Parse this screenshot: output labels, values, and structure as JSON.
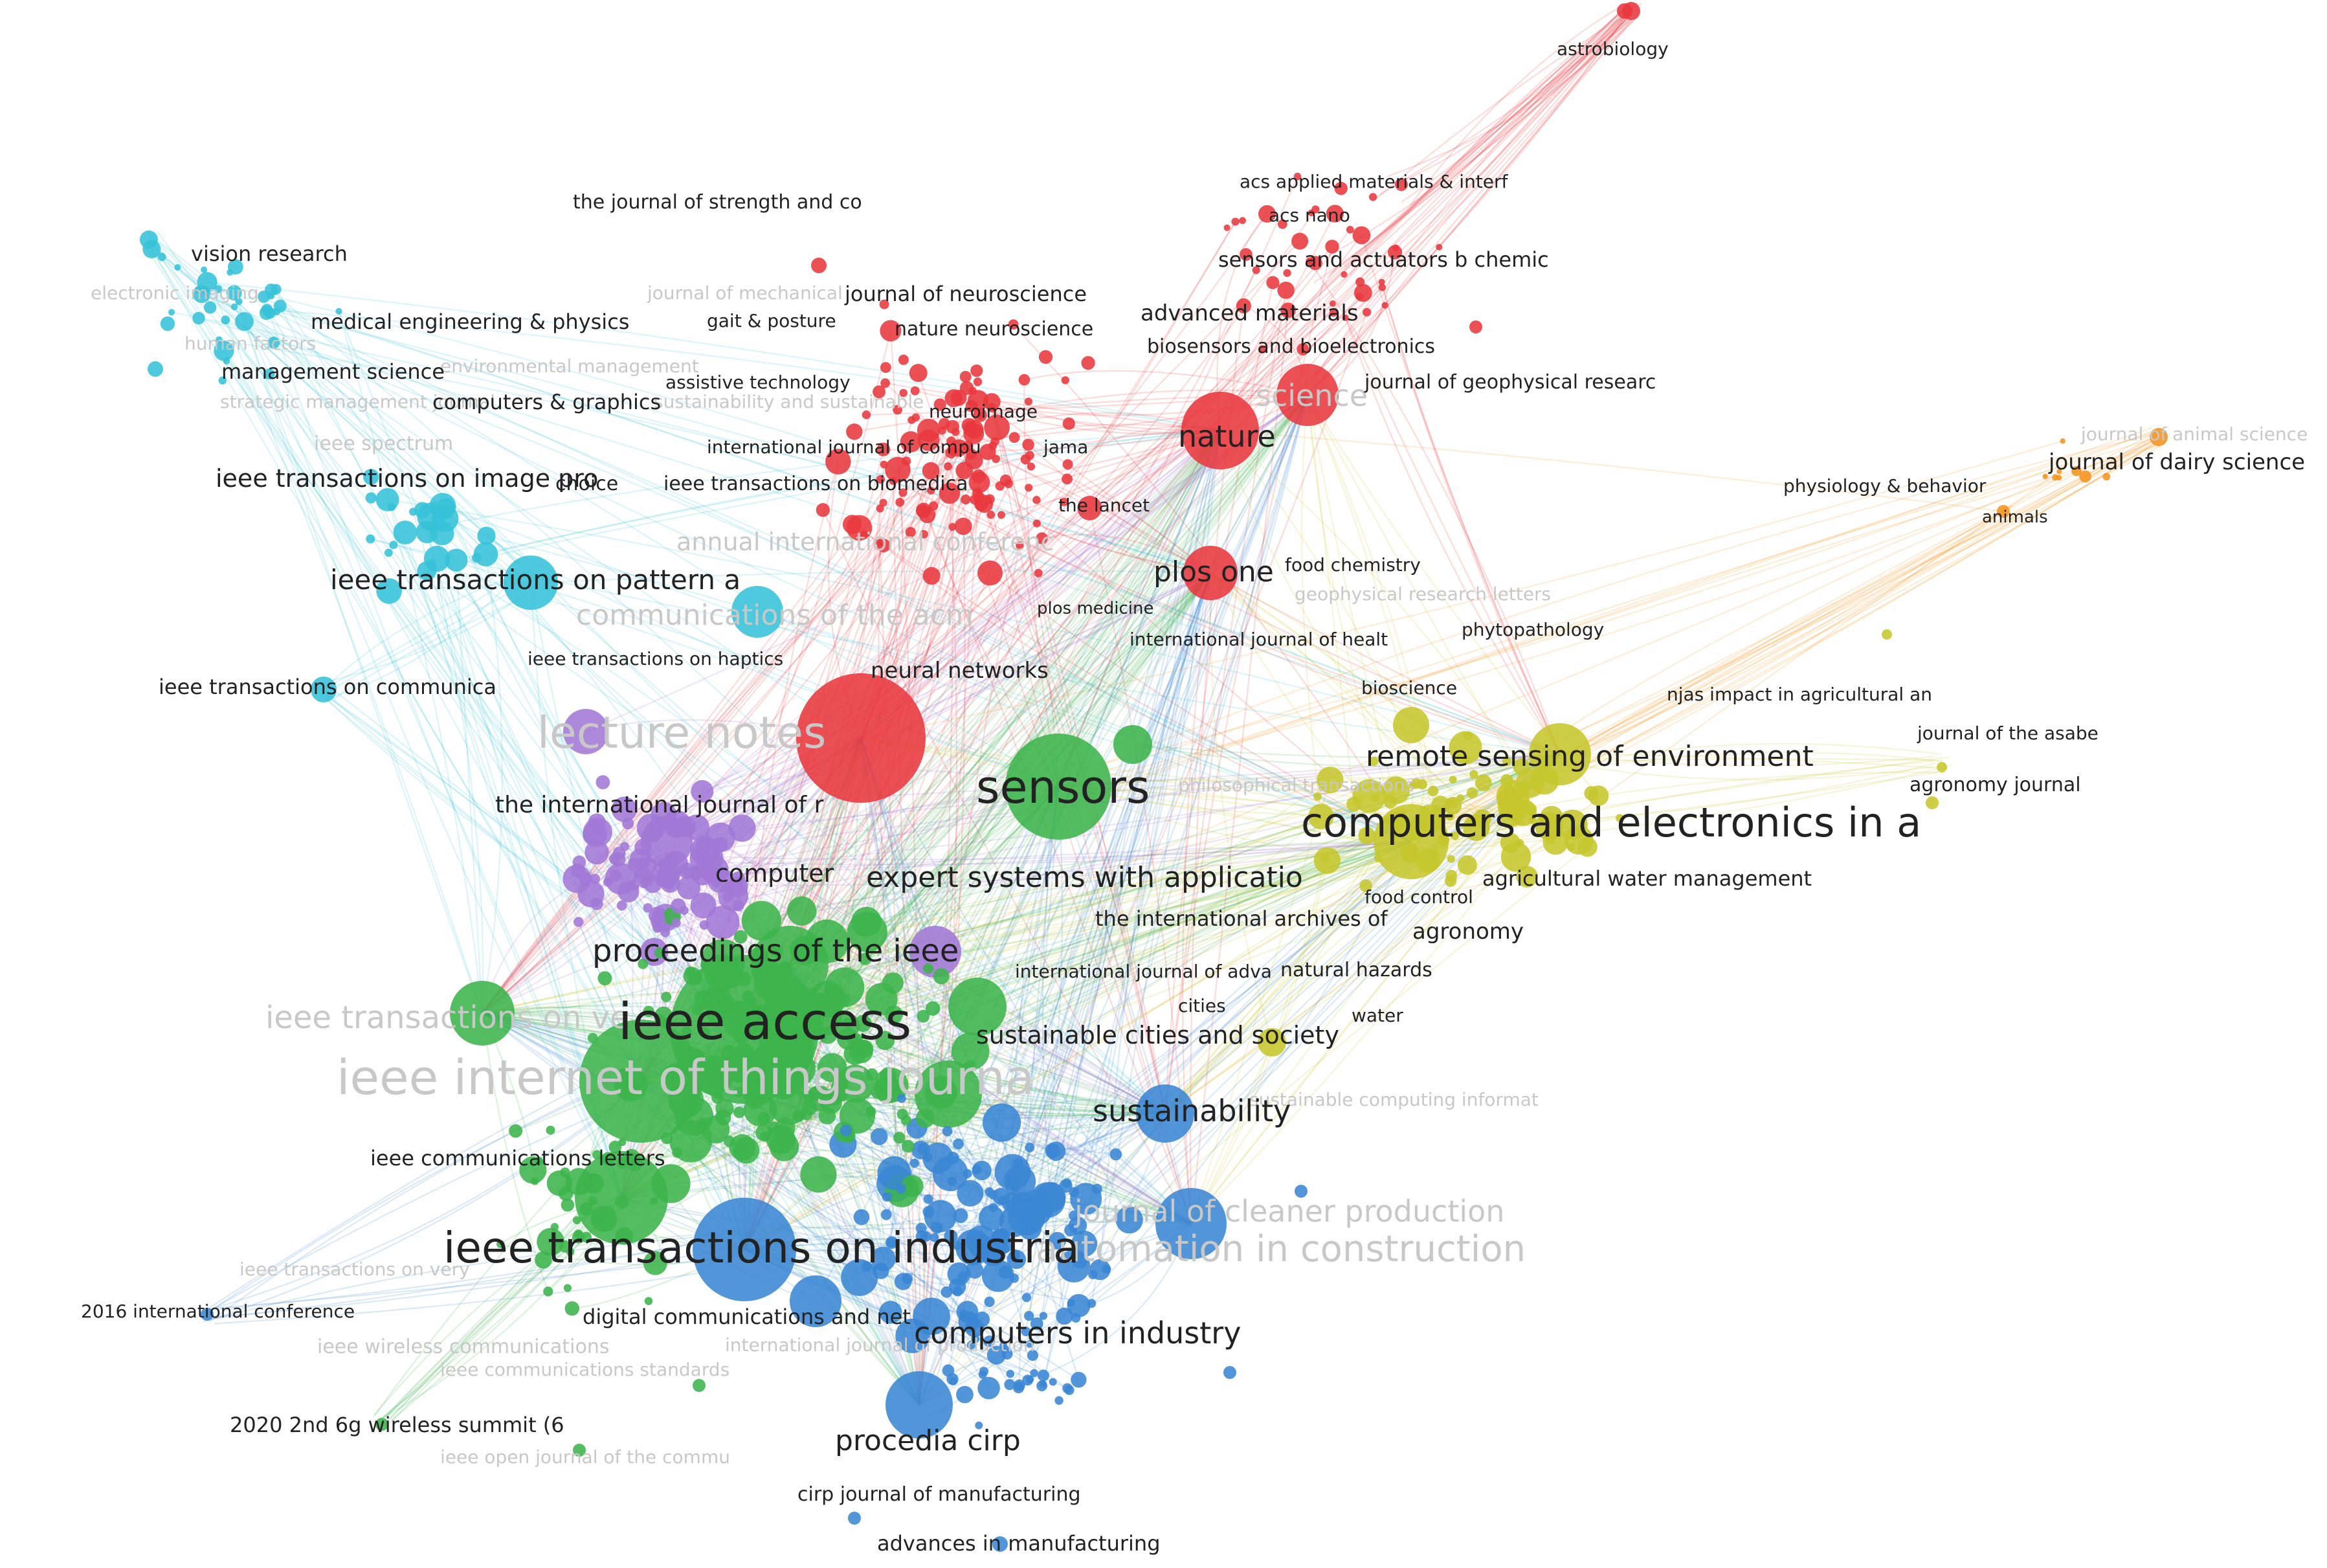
{
  "colors": {
    "red": "#e8383d",
    "green": "#3cb44b",
    "blue": "#3a86d4",
    "yellow": "#c6c62c",
    "purple": "#a277d6",
    "cyan": "#35c2d8",
    "orange": "#f5931e",
    "label": "#222222",
    "faint_label": "#c8c8c8"
  },
  "labels": {
    "astrobiology": "astrobiology",
    "journal_strength": "the journal of strength and co",
    "acs_applied": "acs applied materials & interf",
    "acs_nano": "acs nano",
    "sensors_actuators": "sensors and actuators b chemic",
    "vision_research": "vision research",
    "journal_neuroscience": "journal of neuroscience",
    "gait_posture": "gait & posture",
    "nature_neuroscience": "nature neuroscience",
    "advanced_materials": "advanced materials",
    "medical_engineering": "medical engineering & physics",
    "biosensors": "biosensors and bioelectronics",
    "management_science": "management science",
    "assistive_technology": "assistive technology",
    "journal_geophysical": "journal of geophysical researc",
    "computers_graphics": "computers & graphics",
    "neuroimage": "neuroimage",
    "nature": "nature",
    "science": "science",
    "ieee_spectrum": "ieee spectrum",
    "international_journal_compu": "international journal of compu",
    "jama": "jama",
    "journal_animal_science": "journal of animal science",
    "journal_dairy_science": "journal of dairy science",
    "ieee_tip": "ieee transactions on image pro",
    "choice": "choice",
    "ieee_biomedical": "ieee transactions on biomedica",
    "physiology_behavior": "physiology & behavior",
    "the_lancet": "the lancet",
    "animals": "animals",
    "annual_international": "annual international conferenc",
    "plos_one": "plos one",
    "food_chemistry": "food chemistry",
    "ieee_pattern": "ieee transactions on pattern a",
    "geophysical_letters": "geophysical research letters",
    "plos_medicine": "plos medicine",
    "communications_acm": "communications of the acm",
    "phytopathology": "phytopathology",
    "international_journal_health": "international journal of healt",
    "ieee_haptics": "ieee transactions on haptics",
    "neural_networks": "neural networks",
    "ieee_communica": "ieee transactions on communica",
    "bioscience": "bioscience",
    "njas": "njas impact in agricultural an",
    "journal_asabe": "journal of the asabe",
    "remote_sensing": "remote sensing of environment",
    "lecture_notes": "lecture notes",
    "sensors": "sensors",
    "agronomy_journal": "agronomy journal",
    "intl_journal_r": "the international journal of r",
    "computers_electronics": "computers and electronics in a",
    "computer": "computer",
    "expert_systems": "expert systems with applicatio",
    "agricultural_water": "agricultural water management",
    "food_control": "food control",
    "intl_archives": "the international archives of",
    "agronomy": "agronomy",
    "proceedings_ieee": "proceedings of the ieee",
    "intl_journal_adv": "international journal of adva",
    "natural_hazards": "natural hazards",
    "ieee_transactions_ve": "ieee transactions on ve",
    "ieee_access": "ieee access",
    "cities": "cities",
    "water": "water",
    "sustainable_cities": "sustainable cities and society",
    "ieee_iot": "ieee internet of things journa",
    "sustainable_computing": "sustainable computing informat",
    "sustainability": "sustainability",
    "ieee_comm_letters": "ieee communications letters",
    "cleaner_production": "journal of cleaner production",
    "ieee_industria": "ieee transactions on industria",
    "automation_construction": "automation in construction",
    "ieee_very": "ieee transactions on very",
    "conf_2016": "2016 international conference",
    "digital_communications": "digital communications and net",
    "computers_industry": "computers in industry",
    "ieee_wireless": "ieee wireless communications",
    "ieee_comm_standards": "ieee communications standards",
    "summit_2020": "2020 2nd 6g wireless summit (6",
    "procedia_cirp": "procedia cirp",
    "ieee_open_journal": "ieee open journal of the commu",
    "cirp_journal": "cirp journal of manufacturing",
    "advances_manufacturing": "advances in manufacturing",
    "journal_mechanical": "journal of mechanical",
    "electronic_imaging": "electronic imaging",
    "human_factors": "human factors",
    "environmental_management": "environmental management",
    "strategic_management": "strategic management journal",
    "sustainability_reporting": "sustainability and sustainable",
    "philosophical_transactions": "philosophical transactions",
    "intl_journal_production": "international journal of production"
  }
}
